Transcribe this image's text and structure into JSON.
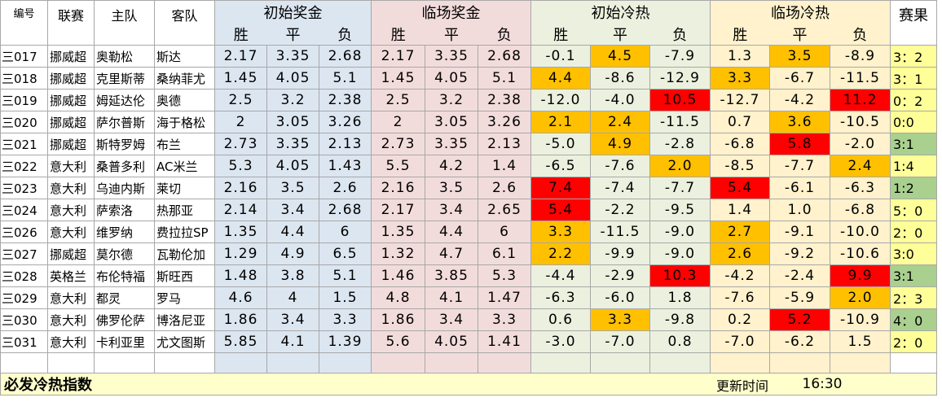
{
  "header": {
    "id": "编号",
    "league": "联赛",
    "home": "主队",
    "away": "客队",
    "groups": [
      "初始奖金",
      "临场奖金",
      "初始冷热",
      "临场冷热"
    ],
    "result": "赛果",
    "sub": [
      "胜",
      "平",
      "负"
    ]
  },
  "colors": {
    "odds_initial_bg": "#dce6f1",
    "odds_final_bg": "#f2dcdb",
    "heat_initial_bg": "#ebf1de",
    "heat_final_bg": "#fff2cc",
    "highlight_orange": "#ffc000",
    "highlight_red": "#ff0000",
    "result_green": "#a9d08e",
    "result_yellow": "#ffff99",
    "footer_bg": "#ffffcc"
  },
  "rows": [
    {
      "id": "三017",
      "league": "挪威超",
      "home": "奥勒松",
      "away": "斯达",
      "odds_init": [
        "2.17",
        "3.35",
        "2.68"
      ],
      "odds_final": [
        "2.17",
        "3.35",
        "2.68"
      ],
      "heat_init": [
        "-0.1",
        "4.5",
        "-7.9"
      ],
      "heat_final": [
        "1.3",
        "3.5",
        "-8.9"
      ],
      "result": "3：2",
      "hi": [
        "",
        "o",
        "",
        "",
        "o",
        ""
      ],
      "res_hl": "y"
    },
    {
      "id": "三018",
      "league": "挪威超",
      "home": "克里斯蒂",
      "away": "桑纳菲尤",
      "odds_init": [
        "1.45",
        "4.05",
        "5.1"
      ],
      "odds_final": [
        "1.45",
        "4.05",
        "5.1"
      ],
      "heat_init": [
        "4.4",
        "-8.6",
        "-12.9"
      ],
      "heat_final": [
        "3.3",
        "-6.7",
        "-11.5"
      ],
      "result": "3：1",
      "hi": [
        "o",
        "",
        "",
        "o",
        "",
        ""
      ],
      "res_hl": "y"
    },
    {
      "id": "三019",
      "league": "挪威超",
      "home": "姆延达伦",
      "away": "奥德",
      "odds_init": [
        "2.5",
        "3.2",
        "2.38"
      ],
      "odds_final": [
        "2.5",
        "3.2",
        "2.38"
      ],
      "heat_init": [
        "-12.0",
        "-4.0",
        "10.5"
      ],
      "heat_final": [
        "-12.7",
        "-4.2",
        "11.2"
      ],
      "result": "0：2",
      "hi": [
        "",
        "",
        "r",
        "",
        "",
        "r"
      ],
      "res_hl": "y"
    },
    {
      "id": "三020",
      "league": "挪威超",
      "home": "萨尔普斯",
      "away": "海于格松",
      "odds_init": [
        "2",
        "3.05",
        "3.26"
      ],
      "odds_final": [
        "2",
        "3.05",
        "3.26"
      ],
      "heat_init": [
        "2.1",
        "2.4",
        "-11.5"
      ],
      "heat_final": [
        "0.7",
        "3.6",
        "-10.5"
      ],
      "result": "0:0",
      "hi": [
        "o",
        "o",
        "",
        "",
        "o",
        ""
      ],
      "res_hl": "y"
    },
    {
      "id": "三021",
      "league": "挪威超",
      "home": "斯特罗姆",
      "away": "布兰",
      "odds_init": [
        "2.73",
        "3.35",
        "2.13"
      ],
      "odds_final": [
        "2.73",
        "3.35",
        "2.13"
      ],
      "heat_init": [
        "-5.0",
        "4.9",
        "-2.8"
      ],
      "heat_final": [
        "-6.8",
        "5.8",
        "-2.0"
      ],
      "result": "3:1",
      "hi": [
        "",
        "o",
        "",
        "",
        "r",
        ""
      ],
      "res_hl": "g"
    },
    {
      "id": "三022",
      "league": "意大利",
      "home": "桑普多利",
      "away": "AC米兰",
      "odds_init": [
        "5.3",
        "4.05",
        "1.43"
      ],
      "odds_final": [
        "5.5",
        "4.2",
        "1.4"
      ],
      "heat_init": [
        "-6.5",
        "-7.6",
        "2.0"
      ],
      "heat_final": [
        "-8.5",
        "-7.7",
        "2.4"
      ],
      "result": "1:4",
      "hi": [
        "",
        "",
        "o",
        "",
        "",
        "o"
      ],
      "res_hl": "y"
    },
    {
      "id": "三023",
      "league": "意大利",
      "home": "乌迪内斯",
      "away": "莱切",
      "odds_init": [
        "2.16",
        "3.5",
        "2.6"
      ],
      "odds_final": [
        "2.16",
        "3.5",
        "2.6"
      ],
      "heat_init": [
        "7.4",
        "-7.4",
        "-7.7"
      ],
      "heat_final": [
        "5.4",
        "-6.1",
        "-6.3"
      ],
      "result": "1:2",
      "hi": [
        "r",
        "",
        "",
        "r",
        "",
        ""
      ],
      "res_hl": "g"
    },
    {
      "id": "三024",
      "league": "意大利",
      "home": "萨索洛",
      "away": "热那亚",
      "odds_init": [
        "2.14",
        "3.4",
        "2.68"
      ],
      "odds_final": [
        "2.17",
        "3.4",
        "2.65"
      ],
      "heat_init": [
        "5.4",
        "-2.2",
        "-9.5"
      ],
      "heat_final": [
        "1.4",
        "1.0",
        "-6.8"
      ],
      "result": "5：0",
      "hi": [
        "r",
        "",
        "",
        "",
        "",
        ""
      ],
      "res_hl": "y"
    },
    {
      "id": "三026",
      "league": "意大利",
      "home": "维罗纳",
      "away": "费拉拉SP",
      "odds_init": [
        "1.35",
        "4.4",
        "6"
      ],
      "odds_final": [
        "1.35",
        "4.4",
        "6"
      ],
      "heat_init": [
        "3.3",
        "-11.5",
        "-9.0"
      ],
      "heat_final": [
        "2.7",
        "-9.1",
        "-10.0"
      ],
      "result": "2：0",
      "hi": [
        "o",
        "",
        "",
        "o",
        "",
        ""
      ],
      "res_hl": "y"
    },
    {
      "id": "三027",
      "league": "挪威超",
      "home": "莫尔德",
      "away": "瓦勒伦加",
      "odds_init": [
        "1.29",
        "4.9",
        "6.5"
      ],
      "odds_final": [
        "1.32",
        "4.7",
        "6.1"
      ],
      "heat_init": [
        "2.2",
        "-9.9",
        "-9.0"
      ],
      "heat_final": [
        "2.6",
        "-9.2",
        "-10.6"
      ],
      "result": "3:0",
      "hi": [
        "o",
        "",
        "",
        "o",
        "",
        ""
      ],
      "res_hl": "y"
    },
    {
      "id": "三028",
      "league": "英格兰",
      "home": "布伦特福",
      "away": "斯旺西",
      "odds_init": [
        "1.48",
        "3.8",
        "5.1"
      ],
      "odds_final": [
        "1.46",
        "3.85",
        "5.3"
      ],
      "heat_init": [
        "-4.4",
        "-2.9",
        "10.3"
      ],
      "heat_final": [
        "-4.2",
        "-2.4",
        "9.9"
      ],
      "result": "3:1",
      "hi": [
        "",
        "",
        "r",
        "",
        "",
        "r"
      ],
      "res_hl": "g"
    },
    {
      "id": "三029",
      "league": "意大利",
      "home": "都灵",
      "away": "罗马",
      "odds_init": [
        "4.6",
        "4",
        "1.5"
      ],
      "odds_final": [
        "4.8",
        "4.1",
        "1.47"
      ],
      "heat_init": [
        "-6.3",
        "-6.0",
        "1.8"
      ],
      "heat_final": [
        "-7.6",
        "-5.9",
        "2.0"
      ],
      "result": "2：3",
      "hi": [
        "",
        "",
        "",
        "",
        "",
        "o"
      ],
      "res_hl": "y"
    },
    {
      "id": "三030",
      "league": "意大利",
      "home": "佛罗伦萨",
      "away": "博洛尼亚",
      "odds_init": [
        "1.86",
        "3.4",
        "3.3"
      ],
      "odds_final": [
        "1.86",
        "3.4",
        "3.3"
      ],
      "heat_init": [
        "0.6",
        "3.3",
        "-9.8"
      ],
      "heat_final": [
        "0.2",
        "5.2",
        "-10.9"
      ],
      "result": "4：0",
      "hi": [
        "",
        "o",
        "",
        "",
        "r",
        ""
      ],
      "res_hl": "g"
    },
    {
      "id": "三031",
      "league": "意大利",
      "home": "卡利亚里",
      "away": "尤文图斯",
      "odds_init": [
        "5.85",
        "4.1",
        "1.39"
      ],
      "odds_final": [
        "5.6",
        "4.05",
        "1.41"
      ],
      "heat_init": [
        "-3.0",
        "-7.0",
        "0.8"
      ],
      "heat_final": [
        "-7.0",
        "-6.2",
        "1.5"
      ],
      "result": "2：0",
      "hi": [
        "",
        "",
        "",
        "",
        "",
        ""
      ],
      "res_hl": "y"
    }
  ],
  "footer": {
    "title": "必发冷热指数",
    "update_label": "更新时间",
    "update_time": "16:30"
  }
}
